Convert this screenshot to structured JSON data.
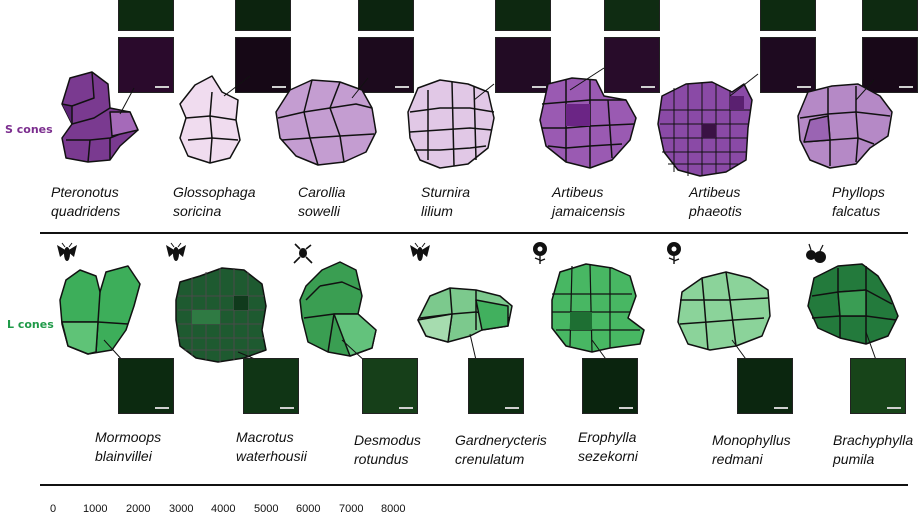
{
  "row_labels": {
    "s": "S cones",
    "l": "L cones"
  },
  "species_top": [
    {
      "l1": "Pteronotus",
      "l2": "quadridens"
    },
    {
      "l1": "Glossophaga",
      "l2": "soricina"
    },
    {
      "l1": "Carollia",
      "l2": "sowelli"
    },
    {
      "l1": "Sturnira",
      "l2": "lilium"
    },
    {
      "l1": "Artibeus",
      "l2": "jamaicensis"
    },
    {
      "l1": "Artibeus",
      "l2": "phaeotis"
    },
    {
      "l1": "Phyllops",
      "l2": "falcatus"
    }
  ],
  "species_bottom": [
    {
      "l1": "Mormoops",
      "l2": "blainvillei"
    },
    {
      "l1": "Macrotus",
      "l2": "waterhousii"
    },
    {
      "l1": "Desmodus",
      "l2": "rotundus"
    },
    {
      "l1": "Gardnerycteris",
      "l2": "crenulatum"
    },
    {
      "l1": "Erophylla",
      "l2": "sezekorni"
    },
    {
      "l1": "Monophyllus",
      "l2": "redmani"
    },
    {
      "l1": "Brachyphylla",
      "l2": "pumila"
    }
  ],
  "diet_icons": [
    "insect-icon",
    "insect-icon",
    "frog-icon",
    "insect-icon",
    "flower-icon",
    "flower-icon",
    "fruit-icon"
  ],
  "scale": {
    "ticks": [
      "0",
      "1000",
      "2000",
      "3000",
      "4000",
      "5000",
      "6000",
      "7000",
      "8000"
    ]
  },
  "colors": {
    "s_cone_label": "#7b2d8e",
    "l_cone_label": "#1f9a48"
  }
}
